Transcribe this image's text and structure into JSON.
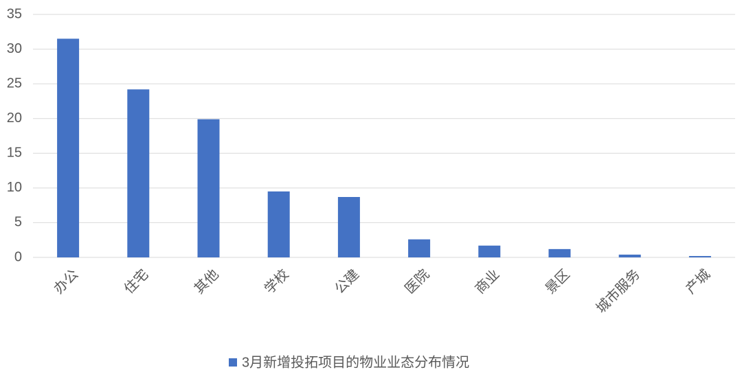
{
  "chart_data": {
    "type": "bar",
    "categories": [
      "办公",
      "住宅",
      "其他",
      "学校",
      "公建",
      "医院",
      "商业",
      "景区",
      "城市服务",
      "产城"
    ],
    "series": [
      {
        "name": "3月新增投拓项目的物业业态分布情况",
        "color": "#4472c4",
        "values": [
          31.5,
          24.2,
          19.9,
          9.5,
          8.7,
          2.6,
          1.7,
          1.2,
          0.4,
          0.2
        ]
      }
    ],
    "ylim": [
      0,
      35
    ],
    "yticks": [
      0,
      5,
      10,
      15,
      20,
      25,
      30,
      35
    ],
    "grid": true,
    "legend": "bottom"
  }
}
